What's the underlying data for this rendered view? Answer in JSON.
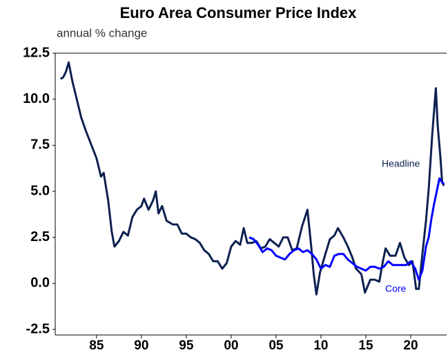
{
  "chart_data": {
    "type": "line",
    "title": "Euro Area Consumer Price Index",
    "subtitle": "annual % change",
    "xlim": [
      1980.4,
      2024
    ],
    "xticks": [
      {
        "value": 1985,
        "label": "85"
      },
      {
        "value": 1990,
        "label": "90"
      },
      {
        "value": 1995,
        "label": "95"
      },
      {
        "value": 2000,
        "label": "00"
      },
      {
        "value": 2005,
        "label": "05"
      },
      {
        "value": 2010,
        "label": "10"
      },
      {
        "value": 2015,
        "label": "15"
      },
      {
        "value": 2020,
        "label": "20"
      }
    ],
    "ylim": [
      -2.8,
      12.5
    ],
    "yticks": [
      12.5,
      {
        "value": 10,
        "label": "10.0"
      },
      7.5,
      {
        "value": 5,
        "label": "5.0"
      },
      2.5,
      {
        "value": 0,
        "label": "0.0"
      },
      -2.5
    ],
    "grid": false,
    "series": [
      {
        "name": "Headline",
        "color": "#0d2050",
        "x": [
          1981.0,
          1981.3,
          1981.6,
          1981.9,
          1982.3,
          1982.8,
          1983.3,
          1983.8,
          1984.2,
          1984.6,
          1985.0,
          1985.5,
          1985.8,
          1986.3,
          1986.7,
          1987.0,
          1987.5,
          1988.0,
          1988.5,
          1989.0,
          1989.5,
          1990.0,
          1990.3,
          1990.8,
          1991.3,
          1991.6,
          1991.9,
          1992.3,
          1992.8,
          1993.5,
          1994.0,
          1994.5,
          1995.0,
          1995.5,
          1996.0,
          1996.5,
          1997.0,
          1997.5,
          1998.0,
          1998.5,
          1999.0,
          1999.5,
          2000.0,
          2000.5,
          2001.0,
          2001.4,
          2001.8,
          2002.3,
          2002.8,
          2003.3,
          2003.8,
          2004.3,
          2004.8,
          2005.3,
          2005.8,
          2006.3,
          2006.8,
          2007.3,
          2007.9,
          2008.5,
          2008.9,
          2009.2,
          2009.5,
          2009.9,
          2010.5,
          2011.0,
          2011.5,
          2011.9,
          2012.5,
          2013.0,
          2013.5,
          2013.9,
          2014.5,
          2014.9,
          2015.5,
          2016.0,
          2016.5,
          2016.9,
          2017.2,
          2017.7,
          2018.3,
          2018.8,
          2019.3,
          2019.8,
          2020.2,
          2020.6,
          2020.9,
          2021.3,
          2021.7,
          2022.0,
          2022.4,
          2022.8,
          2023.0,
          2023.3,
          2023.5,
          2023.7
        ],
        "values": [
          11.1,
          11.2,
          11.5,
          12.0,
          11.0,
          10.0,
          9.0,
          8.3,
          7.8,
          7.3,
          6.8,
          5.8,
          6.0,
          4.5,
          2.8,
          2.0,
          2.3,
          2.8,
          2.6,
          3.6,
          4.0,
          4.2,
          4.6,
          4.0,
          4.5,
          5.0,
          3.8,
          4.2,
          3.4,
          3.2,
          3.2,
          2.7,
          2.7,
          2.5,
          2.4,
          2.2,
          1.8,
          1.6,
          1.2,
          1.2,
          0.8,
          1.1,
          2.0,
          2.3,
          2.1,
          3.0,
          2.2,
          2.2,
          2.3,
          1.9,
          2.0,
          2.4,
          2.2,
          2.0,
          2.5,
          2.5,
          1.8,
          1.9,
          3.1,
          4.0,
          2.1,
          0.5,
          -0.6,
          0.6,
          1.6,
          2.4,
          2.6,
          3.0,
          2.5,
          2.0,
          1.4,
          0.8,
          0.5,
          -0.5,
          0.2,
          0.2,
          0.1,
          1.2,
          1.9,
          1.5,
          1.5,
          2.2,
          1.4,
          1.0,
          1.2,
          -0.3,
          -0.3,
          1.6,
          3.4,
          5.1,
          8.1,
          10.6,
          8.6,
          6.9,
          5.5,
          5.3
        ]
      },
      {
        "name": "Core",
        "color": "#0000ff",
        "x": [
          2002.0,
          2002.5,
          2003.0,
          2003.5,
          2004.0,
          2004.5,
          2005.0,
          2005.5,
          2006.0,
          2006.5,
          2007.0,
          2007.5,
          2008.0,
          2008.5,
          2009.0,
          2009.5,
          2010.0,
          2010.5,
          2011.0,
          2011.5,
          2012.0,
          2012.5,
          2013.0,
          2013.5,
          2014.0,
          2014.5,
          2015.0,
          2015.5,
          2016.0,
          2016.5,
          2017.0,
          2017.5,
          2018.0,
          2018.5,
          2019.0,
          2019.5,
          2020.0,
          2020.5,
          2020.9,
          2021.3,
          2021.7,
          2022.0,
          2022.3,
          2022.6,
          2022.9,
          2023.2,
          2023.5,
          2023.7
        ],
        "values": [
          2.5,
          2.4,
          2.1,
          1.7,
          1.9,
          1.8,
          1.5,
          1.4,
          1.3,
          1.6,
          1.8,
          1.9,
          1.7,
          1.8,
          1.6,
          1.3,
          0.8,
          1.0,
          0.9,
          1.5,
          1.6,
          1.6,
          1.3,
          1.1,
          0.9,
          0.8,
          0.7,
          0.9,
          0.9,
          0.8,
          0.9,
          1.2,
          1.0,
          1.0,
          1.0,
          1.0,
          1.2,
          0.8,
          0.2,
          0.7,
          2.0,
          2.5,
          3.5,
          4.3,
          5.0,
          5.7,
          5.5,
          5.4
        ]
      }
    ]
  }
}
